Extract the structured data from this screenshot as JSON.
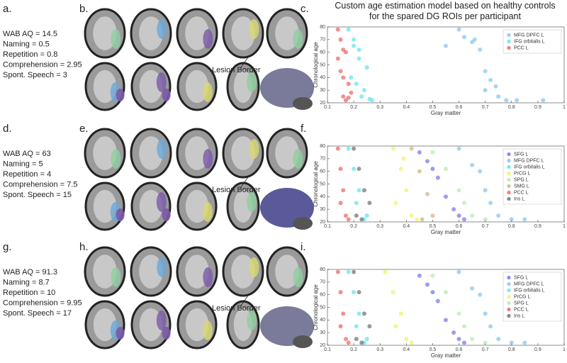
{
  "panel_labels": [
    "a.",
    "b.",
    "c.",
    "d.",
    "e.",
    "f.",
    "g.",
    "h.",
    "i."
  ],
  "participants": [
    {
      "lines": [
        "WAB AQ = 14.5",
        "Naming = 0.5",
        "Repetition = 0.8",
        "Comprehension = 2.95",
        "Spont. Speech = 3"
      ]
    },
    {
      "lines": [
        "WAB AQ = 63",
        "Naming = 5",
        "Repetition = 4",
        "Comprehension = 7.5",
        "Spont. Speech = 15"
      ]
    },
    {
      "lines": [
        "WAB AQ = 91.3",
        "Naming = 8.7",
        "Repetition = 10",
        "Comprehension = 9.95",
        "Spont. Speech = 17"
      ]
    }
  ],
  "lesion_labels": [
    "Lesion Border",
    "Lesion Border",
    "Lesion Border"
  ],
  "chart_data": [
    {
      "type": "scatter",
      "title": "Custom age estimation model based on healthy controls for the spared DG ROIs per participant",
      "xlabel": "Gray matter",
      "ylabel": "Chronological age",
      "xlim": [
        0.1,
        1
      ],
      "xticks": [
        0.1,
        0.2,
        0.3,
        0.4,
        0.5,
        0.6,
        0.7,
        0.8,
        0.9,
        1
      ],
      "ylim": [
        20,
        80
      ],
      "yticks": [
        20,
        30,
        40,
        50,
        60,
        70,
        80
      ],
      "grid": false,
      "legend": "upper right",
      "series": [
        {
          "name": "MFG DPFC L",
          "color": "#6cb8ec",
          "x": [
            0.6,
            0.62,
            0.65,
            0.68,
            0.7,
            0.72,
            0.75,
            0.78,
            0.66,
            0.7,
            0.82,
            0.92,
            0.55,
            0.74
          ],
          "values": [
            78,
            72,
            68,
            62,
            45,
            38,
            25,
            22,
            70,
            30,
            22,
            22,
            65,
            33
          ]
        },
        {
          "name": "IFG orbitalis L",
          "color": "#3ee0ea",
          "x": [
            0.18,
            0.2,
            0.22,
            0.25,
            0.19,
            0.21,
            0.23,
            0.27,
            0.2,
            0.24,
            0.22,
            0.26
          ],
          "values": [
            78,
            70,
            62,
            48,
            40,
            35,
            25,
            22,
            65,
            30,
            55,
            23
          ]
        },
        {
          "name": "PCC L",
          "color": "#e84646",
          "x": [
            0.14,
            0.15,
            0.16,
            0.17,
            0.15,
            0.18,
            0.16,
            0.17,
            0.14,
            0.19,
            0.16,
            0.18
          ],
          "values": [
            78,
            70,
            62,
            60,
            45,
            35,
            25,
            22,
            55,
            28,
            40,
            24
          ]
        }
      ]
    },
    {
      "type": "scatter",
      "xlabel": "Gray matter",
      "ylabel": "Chronological age",
      "xlim": [
        0.1,
        1
      ],
      "xticks": [
        0.1,
        0.2,
        0.3,
        0.4,
        0.5,
        0.6,
        0.7,
        0.8,
        0.9,
        1
      ],
      "ylim": [
        20,
        80
      ],
      "yticks": [
        20,
        30,
        40,
        50,
        60,
        70,
        80
      ],
      "grid": false,
      "legend": "upper right",
      "series": [
        {
          "name": "SFG L",
          "color": "#5a5ae6",
          "x": [
            0.45,
            0.5,
            0.55,
            0.6,
            0.52,
            0.58,
            0.62,
            0.48
          ],
          "values": [
            75,
            62,
            40,
            25,
            55,
            30,
            22,
            68
          ]
        },
        {
          "name": "MFG DPFC L",
          "color": "#6cb8ec",
          "x": [
            0.6,
            0.65,
            0.7,
            0.75,
            0.68,
            0.72,
            0.8,
            0.85
          ],
          "values": [
            78,
            65,
            45,
            25,
            60,
            35,
            22,
            22
          ]
        },
        {
          "name": "IFG orbitalis L",
          "color": "#3ee0ea",
          "x": [
            0.18,
            0.2,
            0.22,
            0.25,
            0.21,
            0.24
          ],
          "values": [
            78,
            62,
            45,
            25,
            35,
            22
          ]
        },
        {
          "name": "PrCG L",
          "color": "#eeee44",
          "x": [
            0.35,
            0.38,
            0.4,
            0.42,
            0.36,
            0.44,
            0.39
          ],
          "values": [
            78,
            62,
            45,
            25,
            35,
            22,
            70
          ]
        },
        {
          "name": "SPG L",
          "color": "#a8e6a0",
          "x": [
            0.5,
            0.55,
            0.6,
            0.65,
            0.62,
            0.7
          ],
          "values": [
            75,
            62,
            45,
            25,
            35,
            22
          ]
        },
        {
          "name": "SMG L",
          "color": "#c8a46a",
          "x": [
            0.42,
            0.45,
            0.48,
            0.5,
            0.46
          ],
          "values": [
            78,
            60,
            42,
            25,
            22
          ]
        },
        {
          "name": "PCC L",
          "color": "#e84646",
          "x": [
            0.14,
            0.15,
            0.16,
            0.17,
            0.15,
            0.18
          ],
          "values": [
            78,
            62,
            45,
            25,
            35,
            22
          ]
        },
        {
          "name": "Ins L",
          "color": "#555555",
          "x": [
            0.2,
            0.22,
            0.24,
            0.21,
            0.26,
            0.23
          ],
          "values": [
            78,
            62,
            45,
            25,
            35,
            22
          ]
        }
      ]
    },
    {
      "type": "scatter",
      "xlabel": "Gray matter",
      "ylabel": "Chronological age",
      "xlim": [
        0.1,
        1
      ],
      "xticks": [
        0.1,
        0.2,
        0.3,
        0.4,
        0.5,
        0.6,
        0.7,
        0.8,
        0.9,
        1
      ],
      "ylim": [
        20,
        80
      ],
      "yticks": [
        20,
        30,
        40,
        50,
        60,
        70,
        80
      ],
      "grid": false,
      "legend": "upper right",
      "series": [
        {
          "name": "SFG L",
          "color": "#5a5ae6",
          "x": [
            0.45,
            0.5,
            0.55,
            0.6,
            0.52,
            0.58,
            0.62,
            0.48
          ],
          "values": [
            75,
            62,
            40,
            25,
            55,
            30,
            22,
            68
          ]
        },
        {
          "name": "MFG DPFC L",
          "color": "#6cb8ec",
          "x": [
            0.6,
            0.65,
            0.7,
            0.75,
            0.68,
            0.72,
            0.8,
            0.85
          ],
          "values": [
            78,
            65,
            45,
            25,
            60,
            35,
            22,
            22
          ]
        },
        {
          "name": "IFG orbitalis L",
          "color": "#3ee0ea",
          "x": [
            0.18,
            0.2,
            0.22,
            0.25,
            0.21,
            0.24
          ],
          "values": [
            78,
            62,
            45,
            25,
            35,
            22
          ]
        },
        {
          "name": "PrCG L",
          "color": "#eeee44",
          "x": [
            0.32,
            0.35,
            0.38,
            0.4,
            0.36,
            0.42
          ],
          "values": [
            78,
            62,
            45,
            25,
            35,
            22
          ]
        },
        {
          "name": "SPG L",
          "color": "#a8e6a0",
          "x": [
            0.5,
            0.55,
            0.6,
            0.65,
            0.62,
            0.7
          ],
          "values": [
            75,
            62,
            45,
            25,
            35,
            22
          ]
        },
        {
          "name": "PCC L",
          "color": "#e84646",
          "x": [
            0.14,
            0.15,
            0.16,
            0.17,
            0.15,
            0.18
          ],
          "values": [
            78,
            62,
            45,
            25,
            35,
            22
          ]
        },
        {
          "name": "Ins L",
          "color": "#555555",
          "x": [
            0.2,
            0.22,
            0.24,
            0.21,
            0.26,
            0.23
          ],
          "values": [
            78,
            62,
            45,
            25,
            35,
            22
          ]
        }
      ]
    }
  ]
}
